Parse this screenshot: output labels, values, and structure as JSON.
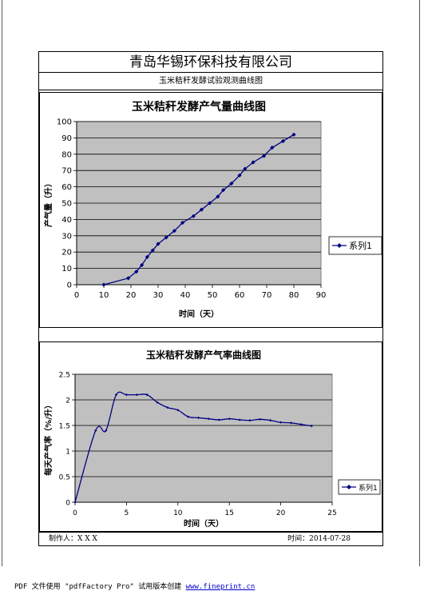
{
  "header": {
    "company": "青岛华锡环保科技有限公司",
    "subtitle": "玉米秸秆发酵试验观测曲线图"
  },
  "footer": {
    "author": "制作人：X X X",
    "date": "时间：2014-07-28"
  },
  "pdf_note": {
    "text": "PDF 文件使用 \"pdfFactory Pro\" 试用版本创建",
    "link": "www.fineprint.cn"
  },
  "colors": {
    "series": "#000080",
    "plot_bg": "#c0c0c0"
  },
  "chart_data": [
    {
      "type": "line",
      "title": "玉米秸秆发酵产气量曲线图",
      "xlabel": "时间（天）",
      "ylabel": "产气量（升）",
      "xlim": [
        0,
        90
      ],
      "ylim": [
        0,
        100
      ],
      "xticks": [
        0,
        10,
        20,
        30,
        40,
        50,
        60,
        70,
        80,
        90
      ],
      "yticks": [
        0,
        10,
        20,
        30,
        40,
        50,
        60,
        70,
        80,
        90,
        100
      ],
      "grid": true,
      "legend": "right",
      "series": [
        {
          "name": "系列1",
          "x": [
            10,
            19,
            22,
            24,
            26,
            28,
            30,
            33,
            36,
            39,
            43,
            46,
            49,
            52,
            54,
            57,
            60,
            62,
            65,
            69,
            72,
            76,
            80
          ],
          "y": [
            0,
            4,
            8,
            12,
            17,
            21,
            25,
            29,
            33,
            38,
            42,
            46,
            50,
            54,
            58,
            62,
            67,
            71,
            75,
            79,
            84,
            88,
            92
          ]
        }
      ]
    },
    {
      "type": "line",
      "title": "玉米秸秆发酵产气率曲线图",
      "xlabel": "时间（天）",
      "ylabel": "每天产气率（%/升）",
      "xlim": [
        0,
        25
      ],
      "ylim": [
        0,
        2.5
      ],
      "xticks": [
        0,
        5,
        10,
        15,
        20,
        25
      ],
      "yticks": [
        0,
        0.5,
        1,
        1.5,
        2,
        2.5
      ],
      "ytick_labels": [
        "0",
        "0.5",
        "1",
        "1.5",
        "2",
        "2.5"
      ],
      "grid": true,
      "legend": "right",
      "series": [
        {
          "name": "系列1",
          "x": [
            0,
            2,
            3,
            4,
            5,
            6,
            7,
            8,
            9,
            10,
            11,
            12,
            13,
            14,
            15,
            16,
            17,
            18,
            19,
            20,
            21,
            22,
            23
          ],
          "y": [
            0,
            1.4,
            1.4,
            2.1,
            2.1,
            2.1,
            2.1,
            1.95,
            1.85,
            1.8,
            1.67,
            1.65,
            1.63,
            1.61,
            1.63,
            1.61,
            1.6,
            1.62,
            1.6,
            1.56,
            1.55,
            1.52,
            1.49
          ]
        }
      ]
    }
  ]
}
